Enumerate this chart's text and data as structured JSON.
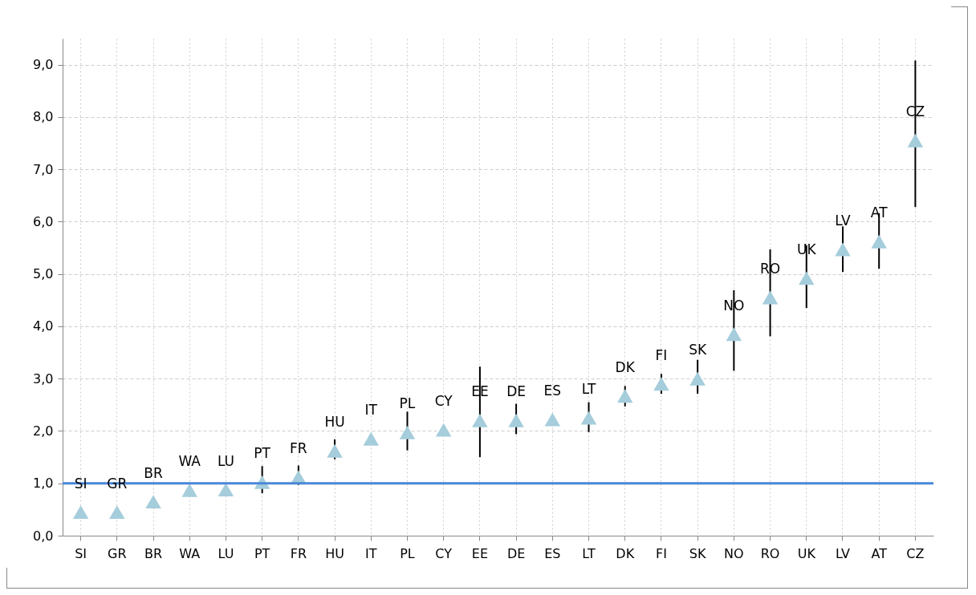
{
  "chart_data": {
    "type": "scatter",
    "categories": [
      "SI",
      "GR",
      "BR",
      "WA",
      "LU",
      "PT",
      "FR",
      "HU",
      "IT",
      "PL",
      "CY",
      "EE",
      "DE",
      "ES",
      "LT",
      "DK",
      "FI",
      "SK",
      "NO",
      "RO",
      "UK",
      "LV",
      "AT",
      "CZ"
    ],
    "series": [
      {
        "color": "#a5cddb",
        "values": [
          0.45,
          0.45,
          0.65,
          0.87,
          0.88,
          1.02,
          1.12,
          1.62,
          1.85,
          1.97,
          2.02,
          2.2,
          2.2,
          2.22,
          2.25,
          2.67,
          2.9,
          3.0,
          3.85,
          4.55,
          4.92,
          5.47,
          5.62,
          7.55
        ],
        "errors": [
          null,
          null,
          null,
          null,
          null,
          [
            0.81,
            1.33
          ],
          [
            0.97,
            1.34
          ],
          [
            1.46,
            1.84
          ],
          null,
          [
            1.63,
            2.37
          ],
          null,
          [
            1.5,
            3.23
          ],
          [
            1.94,
            2.52
          ],
          null,
          [
            1.98,
            2.55
          ],
          [
            2.47,
            2.86
          ],
          [
            2.71,
            3.09
          ],
          [
            2.71,
            3.36
          ],
          [
            3.15,
            4.69
          ],
          [
            3.81,
            5.47
          ],
          [
            4.35,
            5.55
          ],
          [
            5.04,
            5.91
          ],
          [
            5.1,
            6.16
          ],
          [
            6.28,
            9.08
          ]
        ]
      }
    ],
    "annotations": [
      {
        "text": "SI",
        "x": "SI",
        "y": 0.45
      },
      {
        "text": "GR",
        "x": "GR",
        "y": 0.45
      },
      {
        "text": "BR",
        "x": "BR",
        "y": 0.65
      },
      {
        "text": "WA",
        "x": "WA",
        "y": 0.87
      },
      {
        "text": "LU",
        "x": "LU",
        "y": 0.88
      },
      {
        "text": "PT",
        "x": "PT",
        "y": 1.02
      },
      {
        "text": "FR",
        "x": "FR",
        "y": 1.12
      },
      {
        "text": "HU",
        "x": "HU",
        "y": 1.62
      },
      {
        "text": "IT",
        "x": "IT",
        "y": 1.85
      },
      {
        "text": "PL",
        "x": "PL",
        "y": 1.97
      },
      {
        "text": "CY",
        "x": "CY",
        "y": 2.02
      },
      {
        "text": "EE",
        "x": "EE",
        "y": 2.2
      },
      {
        "text": "DE",
        "x": "DE",
        "y": 2.2
      },
      {
        "text": "ES",
        "x": "ES",
        "y": 2.22
      },
      {
        "text": "LT",
        "x": "LT",
        "y": 2.25
      },
      {
        "text": "DK",
        "x": "DK",
        "y": 2.67
      },
      {
        "text": "FI",
        "x": "FI",
        "y": 2.9
      },
      {
        "text": "SK",
        "x": "SK",
        "y": 3.0
      },
      {
        "text": "NO",
        "x": "NO",
        "y": 3.85
      },
      {
        "text": "RO",
        "x": "RO",
        "y": 4.55
      },
      {
        "text": "UK",
        "x": "UK",
        "y": 4.92
      },
      {
        "text": "LV",
        "x": "LV",
        "y": 5.47
      },
      {
        "text": "AT",
        "x": "AT",
        "y": 5.62
      },
      {
        "text": "CZ",
        "x": "CZ",
        "y": 7.55
      }
    ],
    "ylim": [
      0,
      9.5
    ],
    "yticks": [
      {
        "value": 0,
        "label": "0,0"
      },
      {
        "value": 1,
        "label": "1,0"
      },
      {
        "value": 2,
        "label": "2,0"
      },
      {
        "value": 3,
        "label": "3,0"
      },
      {
        "value": 4,
        "label": "4,0"
      },
      {
        "value": 5,
        "label": "5,0"
      },
      {
        "value": 6,
        "label": "6,0"
      },
      {
        "value": 7,
        "label": "7,0"
      },
      {
        "value": 8,
        "label": "8,0"
      },
      {
        "value": 9,
        "label": "9,0"
      }
    ],
    "ref_lines": [
      {
        "axis": "y",
        "value": 1,
        "color": "#4a86d8"
      }
    ],
    "grid": true,
    "marker": "triangle"
  }
}
